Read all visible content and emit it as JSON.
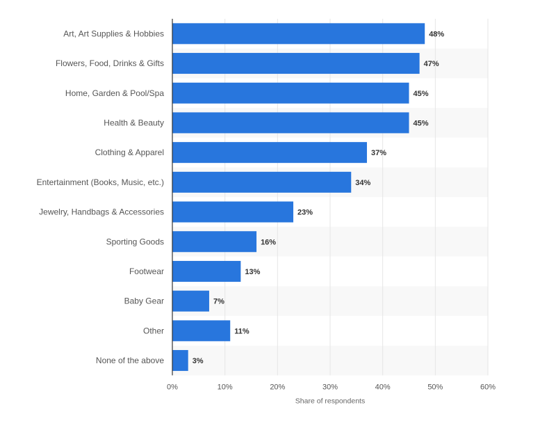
{
  "chart_data": {
    "type": "bar",
    "orientation": "horizontal",
    "categories": [
      "Art, Art Supplies & Hobbies",
      "Flowers, Food, Drinks & Gifts",
      "Home, Garden & Pool/Spa",
      "Health & Beauty",
      "Clothing & Apparel",
      "Entertainment (Books, Music, etc.)",
      "Jewelry, Handbags & Accessories",
      "Sporting Goods",
      "Footwear",
      "Baby Gear",
      "Other",
      "None of the above"
    ],
    "values": [
      48,
      47,
      45,
      45,
      37,
      34,
      23,
      16,
      13,
      7,
      11,
      3
    ],
    "value_labels": [
      "48%",
      "47%",
      "45%",
      "45%",
      "37%",
      "34%",
      "23%",
      "16%",
      "13%",
      "7%",
      "11%",
      "3%"
    ],
    "xlabel": "Share of respondents",
    "ylabel": "",
    "xlim": [
      0,
      60
    ],
    "ticks": [
      0,
      10,
      20,
      30,
      40,
      50,
      60
    ],
    "tick_labels": [
      "0%",
      "10%",
      "20%",
      "30%",
      "40%",
      "50%",
      "60%"
    ],
    "grid": true,
    "legend": false,
    "colors": {
      "bar": "#2876dd",
      "band": "#f8f8f8",
      "grid": "#e6e6e6",
      "axis": "#333333"
    }
  }
}
